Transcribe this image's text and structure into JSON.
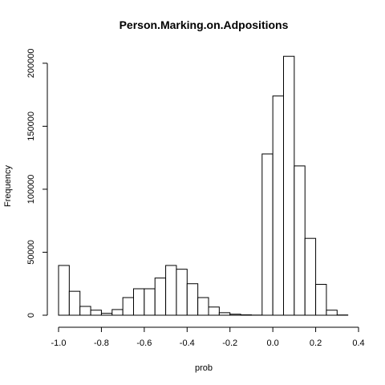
{
  "chart_data": {
    "type": "bar",
    "title": "Person.Marking.on.Adpositions",
    "xlabel": "prob",
    "ylabel": "Frequency",
    "xlim": [
      -1.0,
      0.4
    ],
    "ylim": [
      0,
      205000
    ],
    "x_ticks": [
      -1.0,
      -0.8,
      -0.6,
      -0.4,
      -0.2,
      0.0,
      0.2,
      0.4
    ],
    "x_tick_labels": [
      "-1.0",
      "-0.8",
      "-0.6",
      "-0.4",
      "-0.2",
      "0.0",
      "0.2",
      "0.4"
    ],
    "y_ticks": [
      0,
      50000,
      100000,
      150000,
      200000
    ],
    "y_tick_labels": [
      "0",
      "50000",
      "100000",
      "150000",
      "200000"
    ],
    "bin_width": 0.05,
    "bins": [
      {
        "x0": -1.0,
        "x1": -0.95,
        "count": 39500
      },
      {
        "x0": -0.95,
        "x1": -0.9,
        "count": 19000
      },
      {
        "x0": -0.9,
        "x1": -0.85,
        "count": 7000
      },
      {
        "x0": -0.85,
        "x1": -0.8,
        "count": 4000
      },
      {
        "x0": -0.8,
        "x1": -0.75,
        "count": 1500
      },
      {
        "x0": -0.75,
        "x1": -0.7,
        "count": 4500
      },
      {
        "x0": -0.7,
        "x1": -0.65,
        "count": 14000
      },
      {
        "x0": -0.65,
        "x1": -0.6,
        "count": 21000
      },
      {
        "x0": -0.6,
        "x1": -0.55,
        "count": 21000
      },
      {
        "x0": -0.55,
        "x1": -0.5,
        "count": 29500
      },
      {
        "x0": -0.5,
        "x1": -0.45,
        "count": 39500
      },
      {
        "x0": -0.45,
        "x1": -0.4,
        "count": 36500
      },
      {
        "x0": -0.4,
        "x1": -0.35,
        "count": 25000
      },
      {
        "x0": -0.35,
        "x1": -0.3,
        "count": 14000
      },
      {
        "x0": -0.3,
        "x1": -0.25,
        "count": 6500
      },
      {
        "x0": -0.25,
        "x1": -0.2,
        "count": 2000
      },
      {
        "x0": -0.2,
        "x1": -0.15,
        "count": 800
      },
      {
        "x0": -0.15,
        "x1": -0.1,
        "count": 300
      },
      {
        "x0": -0.1,
        "x1": -0.05,
        "count": 100
      },
      {
        "x0": -0.05,
        "x1": 0.0,
        "count": 128000
      },
      {
        "x0": 0.0,
        "x1": 0.05,
        "count": 174000
      },
      {
        "x0": 0.05,
        "x1": 0.1,
        "count": 205500
      },
      {
        "x0": 0.1,
        "x1": 0.15,
        "count": 118500
      },
      {
        "x0": 0.15,
        "x1": 0.2,
        "count": 61000
      },
      {
        "x0": 0.2,
        "x1": 0.25,
        "count": 24500
      },
      {
        "x0": 0.25,
        "x1": 0.3,
        "count": 4000
      },
      {
        "x0": 0.3,
        "x1": 0.35,
        "count": 200
      }
    ],
    "grid": false,
    "legend": "none",
    "bar_fill": "#ffffff",
    "bar_stroke": "#000000"
  }
}
